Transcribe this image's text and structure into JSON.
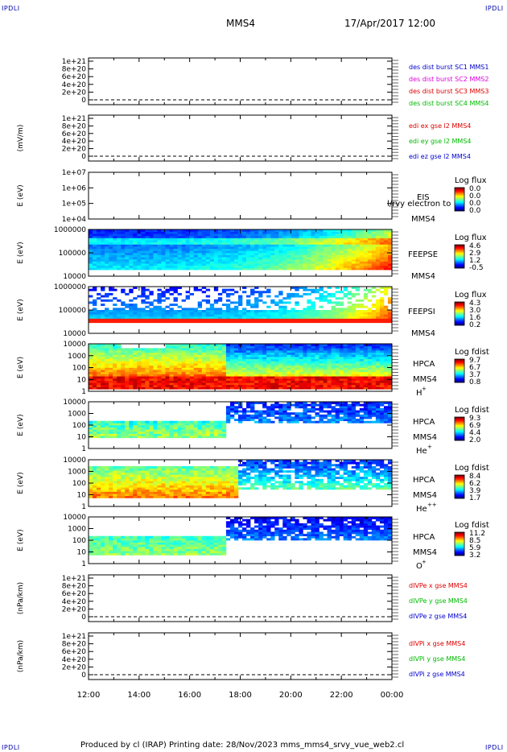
{
  "corner_labels": [
    "IPDLI",
    "IPDLI",
    "IPDLI",
    "IPDLI"
  ],
  "header": {
    "mission": "MMS4",
    "date_time": "17/Apr/2017 12:00"
  },
  "footer": {
    "text": "Produced by cl (IRAP)   Printing date: 28/Nov/2023   mms_mms4_srvy_vue_web2.cl"
  },
  "colors": {
    "red": "#dd0000",
    "green": "#00bb00",
    "blue": "#0000cc",
    "magenta": "#dd00dd"
  },
  "chart_data": [
    {
      "type": "line",
      "title": "",
      "ylabel": "",
      "ytick_labels": [
        "1e+21",
        "8e+20",
        "6e+20",
        "4e+20",
        "2e+20",
        "0"
      ],
      "legend": [
        {
          "label": "des dist burst SC1 MMS1",
          "color": "#0000cc"
        },
        {
          "label": "des dist burst SC2 MMS2",
          "color": "#dd00dd"
        },
        {
          "label": "des dist burst SC3 MMS3",
          "color": "#dd0000"
        },
        {
          "label": "des dist burst SC4 MMS4",
          "color": "#00bb00"
        }
      ],
      "series": []
    },
    {
      "type": "line",
      "title": "",
      "ylabel": "(mV/m)",
      "ytick_labels": [
        "1e+21",
        "8e+20",
        "6e+20",
        "4e+20",
        "2e+20",
        "0"
      ],
      "legend": [
        {
          "label": "edi ex gse l2 MMS4",
          "color": "#dd0000"
        },
        {
          "label": "edi ey gse l2 MMS4",
          "color": "#00bb00"
        },
        {
          "label": "edi ez gse l2 MMS4",
          "color": "#0000cc"
        }
      ],
      "series": []
    },
    {
      "type": "heatmap",
      "ylabel": "E (eV)",
      "yscale": "log",
      "ytick_labels": [
        "1e+07",
        "1e+06",
        "1e+05",
        "1e+04"
      ],
      "instrument": "EIS",
      "overlay_text": "l/rvy electron to",
      "spacecraft": "MMS4",
      "colorbar": {
        "title": "Log flux",
        "ticks": [
          "0.0",
          "0.0",
          "0.0",
          "0.0"
        ]
      }
    },
    {
      "type": "heatmap",
      "ylabel": "E (eV)",
      "yscale": "log",
      "ylim": [
        10000,
        1000000
      ],
      "ytick_labels": [
        "1000000",
        "100000",
        "10000"
      ],
      "instrument": "FEEPSE",
      "spacecraft": "MMS4",
      "colorbar": {
        "title": "Log flux",
        "ticks": [
          "4.6",
          "2.9",
          "1.2",
          "-0.5"
        ]
      }
    },
    {
      "type": "heatmap",
      "ylabel": "E (eV)",
      "yscale": "log",
      "ylim": [
        10000,
        1000000
      ],
      "ytick_labels": [
        "1000000",
        "100000",
        "10000"
      ],
      "instrument": "FEEPSI",
      "spacecraft": "MMS4",
      "colorbar": {
        "title": "Log flux",
        "ticks": [
          "4.3",
          "3.0",
          "1.6",
          "0.2"
        ]
      }
    },
    {
      "type": "heatmap",
      "ylabel": "E (eV)",
      "yscale": "log",
      "ylim": [
        1,
        10000
      ],
      "ytick_labels": [
        "10000",
        "1000",
        "100",
        "10",
        "1"
      ],
      "instrument": "HPCA",
      "spacecraft": "MMS4",
      "species": "H",
      "species_charge": "+",
      "colorbar": {
        "title": "Log fdist",
        "ticks": [
          "9.7",
          "6.7",
          "3.7",
          "0.8"
        ]
      }
    },
    {
      "type": "heatmap",
      "ylabel": "E (eV)",
      "yscale": "log",
      "ylim": [
        1,
        10000
      ],
      "ytick_labels": [
        "10000",
        "1000",
        "100",
        "10",
        "1"
      ],
      "instrument": "HPCA",
      "spacecraft": "MMS4",
      "species": "He",
      "species_charge": "+",
      "colorbar": {
        "title": "Log fdist",
        "ticks": [
          "9.3",
          "6.9",
          "4.4",
          "2.0"
        ]
      }
    },
    {
      "type": "heatmap",
      "ylabel": "E (eV)",
      "yscale": "log",
      "ylim": [
        1,
        10000
      ],
      "ytick_labels": [
        "10000",
        "1000",
        "100",
        "10",
        "1"
      ],
      "instrument": "HPCA",
      "spacecraft": "MMS4",
      "species": "He",
      "species_charge": "++",
      "colorbar": {
        "title": "Log fdist",
        "ticks": [
          "8.4",
          "6.2",
          "3.9",
          "1.7"
        ]
      }
    },
    {
      "type": "heatmap",
      "ylabel": "E (eV)",
      "yscale": "log",
      "ylim": [
        1,
        10000
      ],
      "ytick_labels": [
        "10000",
        "1000",
        "100",
        "10",
        "1"
      ],
      "instrument": "HPCA",
      "spacecraft": "MMS4",
      "species": "O",
      "species_charge": "+",
      "colorbar": {
        "title": "Log fdist",
        "ticks": [
          "11.2",
          "8.5",
          "5.9",
          "3.2"
        ]
      }
    },
    {
      "type": "line",
      "ylabel": "(nPa/km)",
      "ytick_labels": [
        "1e+21",
        "8e+20",
        "6e+20",
        "4e+20",
        "2e+20",
        "0"
      ],
      "legend": [
        {
          "label": "dIVPe x gse MMS4",
          "color": "#dd0000"
        },
        {
          "label": "dIVPe y gse MMS4",
          "color": "#00bb00"
        },
        {
          "label": "dIVPe z gse MMS4",
          "color": "#0000cc"
        }
      ],
      "series": []
    },
    {
      "type": "line",
      "ylabel": "(nPa/km)",
      "ytick_labels": [
        "1e+21",
        "8e+20",
        "6e+20",
        "4e+20",
        "2e+20",
        "0"
      ],
      "legend": [
        {
          "label": "dIVPi x gse MMS4",
          "color": "#dd0000"
        },
        {
          "label": "dIVPi y gse MMS4",
          "color": "#00bb00"
        },
        {
          "label": "dIVPi z gse MMS4",
          "color": "#0000cc"
        }
      ],
      "series": []
    }
  ],
  "time_axis": {
    "tick_labels": [
      "12:00",
      "14:00",
      "16:00",
      "18:00",
      "20:00",
      "22:00",
      "00:00"
    ]
  }
}
